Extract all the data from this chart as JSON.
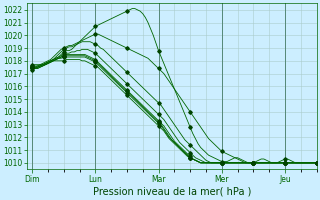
{
  "title": "Pression niveau de la mer( hPa )",
  "bg_color": "#cceeff",
  "grid_color": "#aacccc",
  "line_color": "#006600",
  "marker_color": "#004400",
  "ylim": [
    1009.5,
    1022.5
  ],
  "yticks": [
    1010,
    1011,
    1012,
    1013,
    1014,
    1015,
    1016,
    1017,
    1018,
    1019,
    1020,
    1021,
    1022
  ],
  "xtick_labels": [
    "Dim",
    "Lun",
    "Mar",
    "Mer",
    "Jeu"
  ],
  "xtick_positions": [
    0,
    24,
    48,
    72,
    96
  ],
  "xlim": [
    -2,
    108
  ],
  "num_hours": 109,
  "series": [
    [
      1017.5,
      1017.5,
      1017.5,
      1017.6,
      1017.7,
      1017.8,
      1017.9,
      1018.0,
      1018.1,
      1018.2,
      1018.3,
      1018.5,
      1018.7,
      1018.8,
      1018.8,
      1018.9,
      1019.1,
      1019.3,
      1019.5,
      1019.7,
      1019.9,
      1020.1,
      1020.3,
      1020.5,
      1020.7,
      1020.8,
      1020.9,
      1021.0,
      1021.1,
      1021.2,
      1021.3,
      1021.4,
      1021.5,
      1021.6,
      1021.7,
      1021.8,
      1021.9,
      1022.0,
      1022.1,
      1022.1,
      1022.0,
      1021.9,
      1021.7,
      1021.4,
      1021.0,
      1020.5,
      1020.0,
      1019.4,
      1018.8,
      1018.3,
      1017.8,
      1017.3,
      1016.8,
      1016.3,
      1015.8,
      1015.3,
      1014.8,
      1014.3,
      1013.8,
      1013.3,
      1012.8,
      1012.3,
      1011.9,
      1011.5,
      1011.2,
      1011.0,
      1010.8,
      1010.6,
      1010.5,
      1010.4,
      1010.3,
      1010.2,
      1010.1,
      1010.1,
      1010.1,
      1010.2,
      1010.3,
      1010.4,
      1010.4,
      1010.3,
      1010.2,
      1010.1,
      1010.0,
      1010.0,
      1010.0,
      1010.1,
      1010.2,
      1010.3,
      1010.3,
      1010.2,
      1010.1,
      1010.0,
      1010.0,
      1010.0,
      1010.1,
      1010.2,
      1010.3,
      1010.3,
      1010.2,
      1010.1,
      1010.0,
      1010.0,
      1010.0,
      1010.0,
      1010.0,
      1010.0,
      1010.0,
      1010.0,
      1010.0
    ],
    [
      1017.5,
      1017.5,
      1017.6,
      1017.7,
      1017.8,
      1017.9,
      1018.0,
      1018.1,
      1018.3,
      1018.5,
      1018.7,
      1018.9,
      1019.0,
      1019.1,
      1019.2,
      1019.2,
      1019.3,
      1019.4,
      1019.5,
      1019.6,
      1019.7,
      1019.8,
      1019.9,
      1020.0,
      1020.1,
      1020.1,
      1020.0,
      1019.9,
      1019.8,
      1019.7,
      1019.6,
      1019.5,
      1019.4,
      1019.3,
      1019.2,
      1019.1,
      1019.0,
      1018.9,
      1018.8,
      1018.7,
      1018.6,
      1018.5,
      1018.4,
      1018.3,
      1018.2,
      1018.0,
      1017.8,
      1017.6,
      1017.4,
      1017.2,
      1017.0,
      1016.7,
      1016.4,
      1016.1,
      1015.8,
      1015.5,
      1015.2,
      1014.9,
      1014.6,
      1014.3,
      1014.0,
      1013.7,
      1013.4,
      1013.1,
      1012.8,
      1012.5,
      1012.2,
      1011.9,
      1011.7,
      1011.5,
      1011.3,
      1011.1,
      1010.9,
      1010.8,
      1010.7,
      1010.6,
      1010.5,
      1010.4,
      1010.3,
      1010.2,
      1010.1,
      1010.0,
      1010.0,
      1010.0,
      1010.0,
      1010.0,
      1010.0,
      1010.0,
      1010.0,
      1010.0,
      1010.0,
      1010.0,
      1010.0,
      1010.0,
      1010.0,
      1010.0,
      1010.0,
      1010.0,
      1010.0,
      1010.0,
      1010.0,
      1010.0,
      1010.0,
      1010.0,
      1010.0,
      1010.0,
      1010.0,
      1010.0,
      1010.0
    ],
    [
      1017.5,
      1017.5,
      1017.5,
      1017.6,
      1017.7,
      1017.8,
      1017.9,
      1018.0,
      1018.1,
      1018.3,
      1018.5,
      1018.7,
      1018.9,
      1019.0,
      1019.1,
      1019.1,
      1019.2,
      1019.3,
      1019.4,
      1019.5,
      1019.5,
      1019.5,
      1019.5,
      1019.4,
      1019.3,
      1019.2,
      1019.0,
      1018.9,
      1018.7,
      1018.5,
      1018.3,
      1018.1,
      1017.9,
      1017.7,
      1017.5,
      1017.3,
      1017.1,
      1016.9,
      1016.7,
      1016.5,
      1016.3,
      1016.1,
      1015.9,
      1015.7,
      1015.5,
      1015.3,
      1015.1,
      1014.9,
      1014.7,
      1014.5,
      1014.2,
      1013.9,
      1013.6,
      1013.3,
      1013.0,
      1012.7,
      1012.4,
      1012.1,
      1011.8,
      1011.6,
      1011.4,
      1011.2,
      1011.0,
      1010.8,
      1010.6,
      1010.4,
      1010.2,
      1010.1,
      1010.0,
      1010.0,
      1010.0,
      1010.0,
      1010.0,
      1010.0,
      1010.0,
      1010.0,
      1010.0,
      1010.0,
      1010.0,
      1010.0,
      1010.0,
      1010.0,
      1010.0,
      1010.0,
      1010.0,
      1010.0,
      1010.0,
      1010.0,
      1010.0,
      1010.0,
      1010.0,
      1010.0,
      1010.0,
      1010.0,
      1010.0,
      1010.0,
      1010.0,
      1010.0,
      1010.0,
      1010.0,
      1010.0,
      1010.0,
      1010.0,
      1010.0,
      1010.0,
      1010.0,
      1010.0,
      1010.0,
      1010.0
    ],
    [
      1017.4,
      1017.4,
      1017.5,
      1017.6,
      1017.7,
      1017.8,
      1017.9,
      1018.0,
      1018.1,
      1018.2,
      1018.3,
      1018.4,
      1018.5,
      1018.6,
      1018.6,
      1018.7,
      1018.7,
      1018.8,
      1018.8,
      1018.9,
      1018.9,
      1018.9,
      1018.8,
      1018.7,
      1018.6,
      1018.4,
      1018.2,
      1018.0,
      1017.8,
      1017.6,
      1017.4,
      1017.2,
      1017.0,
      1016.8,
      1016.6,
      1016.4,
      1016.2,
      1016.0,
      1015.8,
      1015.6,
      1015.4,
      1015.2,
      1015.0,
      1014.8,
      1014.6,
      1014.4,
      1014.2,
      1014.0,
      1013.8,
      1013.6,
      1013.4,
      1013.1,
      1012.8,
      1012.5,
      1012.2,
      1011.9,
      1011.6,
      1011.4,
      1011.2,
      1011.0,
      1010.8,
      1010.6,
      1010.4,
      1010.3,
      1010.2,
      1010.1,
      1010.0,
      1010.0,
      1010.0,
      1010.0,
      1010.0,
      1010.0,
      1010.0,
      1010.0,
      1010.0,
      1010.0,
      1010.0,
      1010.0,
      1010.0,
      1010.0,
      1010.0,
      1010.0,
      1010.0,
      1010.0,
      1010.0,
      1010.0,
      1010.0,
      1010.0,
      1010.0,
      1010.0,
      1010.0,
      1010.0,
      1010.0,
      1010.0,
      1010.0,
      1010.0,
      1010.0,
      1010.0,
      1010.0,
      1010.0,
      1010.0,
      1010.0,
      1010.0,
      1010.0,
      1010.0,
      1010.0,
      1010.0,
      1010.0,
      1010.0
    ],
    [
      1017.4,
      1017.4,
      1017.4,
      1017.5,
      1017.6,
      1017.7,
      1017.8,
      1017.9,
      1018.0,
      1018.1,
      1018.2,
      1018.3,
      1018.4,
      1018.5,
      1018.5,
      1018.5,
      1018.5,
      1018.5,
      1018.5,
      1018.5,
      1018.5,
      1018.4,
      1018.3,
      1018.2,
      1018.1,
      1017.9,
      1017.7,
      1017.5,
      1017.3,
      1017.1,
      1016.9,
      1016.7,
      1016.5,
      1016.3,
      1016.1,
      1015.9,
      1015.7,
      1015.5,
      1015.3,
      1015.1,
      1014.9,
      1014.7,
      1014.5,
      1014.3,
      1014.1,
      1013.9,
      1013.7,
      1013.5,
      1013.3,
      1013.1,
      1012.9,
      1012.6,
      1012.3,
      1012.0,
      1011.7,
      1011.5,
      1011.3,
      1011.1,
      1010.9,
      1010.7,
      1010.5,
      1010.3,
      1010.2,
      1010.1,
      1010.0,
      1010.0,
      1010.0,
      1010.0,
      1010.0,
      1010.0,
      1010.0,
      1010.0,
      1010.0,
      1010.0,
      1010.0,
      1010.0,
      1010.0,
      1010.0,
      1010.0,
      1010.0,
      1010.0,
      1010.0,
      1010.0,
      1010.0,
      1010.0,
      1010.0,
      1010.0,
      1010.0,
      1010.0,
      1010.0,
      1010.0,
      1010.0,
      1010.0,
      1010.0,
      1010.0,
      1010.0,
      1010.0,
      1010.0,
      1010.0,
      1010.0,
      1010.0,
      1010.0,
      1010.0,
      1010.0,
      1010.0,
      1010.0,
      1010.0,
      1010.0,
      1010.0
    ],
    [
      1017.3,
      1017.4,
      1017.4,
      1017.5,
      1017.6,
      1017.7,
      1017.8,
      1017.9,
      1018.0,
      1018.1,
      1018.2,
      1018.3,
      1018.4,
      1018.4,
      1018.4,
      1018.4,
      1018.4,
      1018.4,
      1018.4,
      1018.4,
      1018.4,
      1018.3,
      1018.2,
      1018.1,
      1018.0,
      1017.8,
      1017.6,
      1017.4,
      1017.2,
      1017.0,
      1016.8,
      1016.6,
      1016.4,
      1016.2,
      1016.0,
      1015.8,
      1015.6,
      1015.4,
      1015.2,
      1015.0,
      1014.8,
      1014.6,
      1014.4,
      1014.2,
      1014.0,
      1013.8,
      1013.6,
      1013.4,
      1013.2,
      1013.0,
      1012.7,
      1012.4,
      1012.1,
      1011.8,
      1011.6,
      1011.4,
      1011.2,
      1011.0,
      1010.8,
      1010.6,
      1010.4,
      1010.3,
      1010.2,
      1010.1,
      1010.0,
      1010.0,
      1010.0,
      1010.0,
      1010.0,
      1010.0,
      1010.0,
      1010.0,
      1010.0,
      1010.0,
      1010.0,
      1010.0,
      1010.0,
      1010.0,
      1010.0,
      1010.0,
      1010.0,
      1010.0,
      1010.0,
      1010.0,
      1010.0,
      1010.0,
      1010.0,
      1010.0,
      1010.0,
      1010.0,
      1010.0,
      1010.0,
      1010.0,
      1010.0,
      1010.0,
      1010.0,
      1010.0,
      1010.0,
      1010.0,
      1010.0,
      1010.0,
      1010.0,
      1010.0,
      1010.0,
      1010.0,
      1010.0,
      1010.0,
      1010.0,
      1010.0
    ],
    [
      1017.7,
      1017.7,
      1017.7,
      1017.7,
      1017.7,
      1017.7,
      1017.8,
      1017.9,
      1018.0,
      1018.1,
      1018.2,
      1018.2,
      1018.3,
      1018.3,
      1018.3,
      1018.3,
      1018.3,
      1018.3,
      1018.3,
      1018.3,
      1018.3,
      1018.2,
      1018.1,
      1018.0,
      1017.9,
      1017.7,
      1017.5,
      1017.3,
      1017.1,
      1016.9,
      1016.7,
      1016.5,
      1016.3,
      1016.1,
      1015.9,
      1015.7,
      1015.5,
      1015.3,
      1015.1,
      1014.9,
      1014.7,
      1014.5,
      1014.3,
      1014.1,
      1013.9,
      1013.7,
      1013.5,
      1013.3,
      1013.1,
      1012.9,
      1012.6,
      1012.3,
      1012.0,
      1011.8,
      1011.6,
      1011.4,
      1011.2,
      1011.0,
      1010.8,
      1010.6,
      1010.4,
      1010.3,
      1010.2,
      1010.1,
      1010.0,
      1010.0,
      1010.0,
      1010.0,
      1010.0,
      1010.0,
      1010.0,
      1010.0,
      1010.0,
      1010.0,
      1010.0,
      1010.0,
      1010.0,
      1010.0,
      1010.0,
      1010.0,
      1010.0,
      1010.0,
      1010.0,
      1010.0,
      1010.0,
      1010.0,
      1010.0,
      1010.0,
      1010.0,
      1010.0,
      1010.0,
      1010.0,
      1010.0,
      1010.0,
      1010.0,
      1010.0,
      1010.0,
      1010.0,
      1010.0,
      1010.0,
      1010.0,
      1010.0,
      1010.0,
      1010.0,
      1010.0,
      1010.0,
      1010.0,
      1010.0,
      1010.0
    ],
    [
      1017.6,
      1017.6,
      1017.6,
      1017.6,
      1017.6,
      1017.7,
      1017.8,
      1017.9,
      1018.0,
      1018.0,
      1018.0,
      1018.0,
      1018.0,
      1018.1,
      1018.1,
      1018.1,
      1018.1,
      1018.1,
      1018.1,
      1018.0,
      1018.0,
      1017.9,
      1017.8,
      1017.7,
      1017.6,
      1017.5,
      1017.3,
      1017.1,
      1016.9,
      1016.7,
      1016.5,
      1016.3,
      1016.1,
      1015.9,
      1015.7,
      1015.5,
      1015.3,
      1015.1,
      1014.9,
      1014.7,
      1014.5,
      1014.3,
      1014.1,
      1013.9,
      1013.7,
      1013.5,
      1013.3,
      1013.1,
      1012.9,
      1012.7,
      1012.5,
      1012.2,
      1011.9,
      1011.7,
      1011.5,
      1011.3,
      1011.1,
      1010.9,
      1010.7,
      1010.5,
      1010.4,
      1010.3,
      1010.2,
      1010.1,
      1010.0,
      1010.0,
      1010.0,
      1010.0,
      1010.0,
      1010.0,
      1010.0,
      1010.0,
      1010.0,
      1010.0,
      1010.0,
      1010.0,
      1010.0,
      1010.0,
      1010.0,
      1010.0,
      1010.0,
      1010.0,
      1010.0,
      1010.0,
      1010.0,
      1010.0,
      1010.0,
      1010.0,
      1010.0,
      1010.0,
      1010.0,
      1010.0,
      1010.0,
      1010.0,
      1010.0,
      1010.0,
      1010.0,
      1010.0,
      1010.0,
      1010.0,
      1010.0,
      1010.0,
      1010.0,
      1010.0,
      1010.0,
      1010.0,
      1010.0,
      1010.0,
      1010.0
    ]
  ],
  "marker_x": [
    0,
    12,
    24,
    36,
    48,
    60,
    72,
    84,
    96,
    108
  ],
  "tick_fontsize": 5.5,
  "xlabel_fontsize": 7
}
